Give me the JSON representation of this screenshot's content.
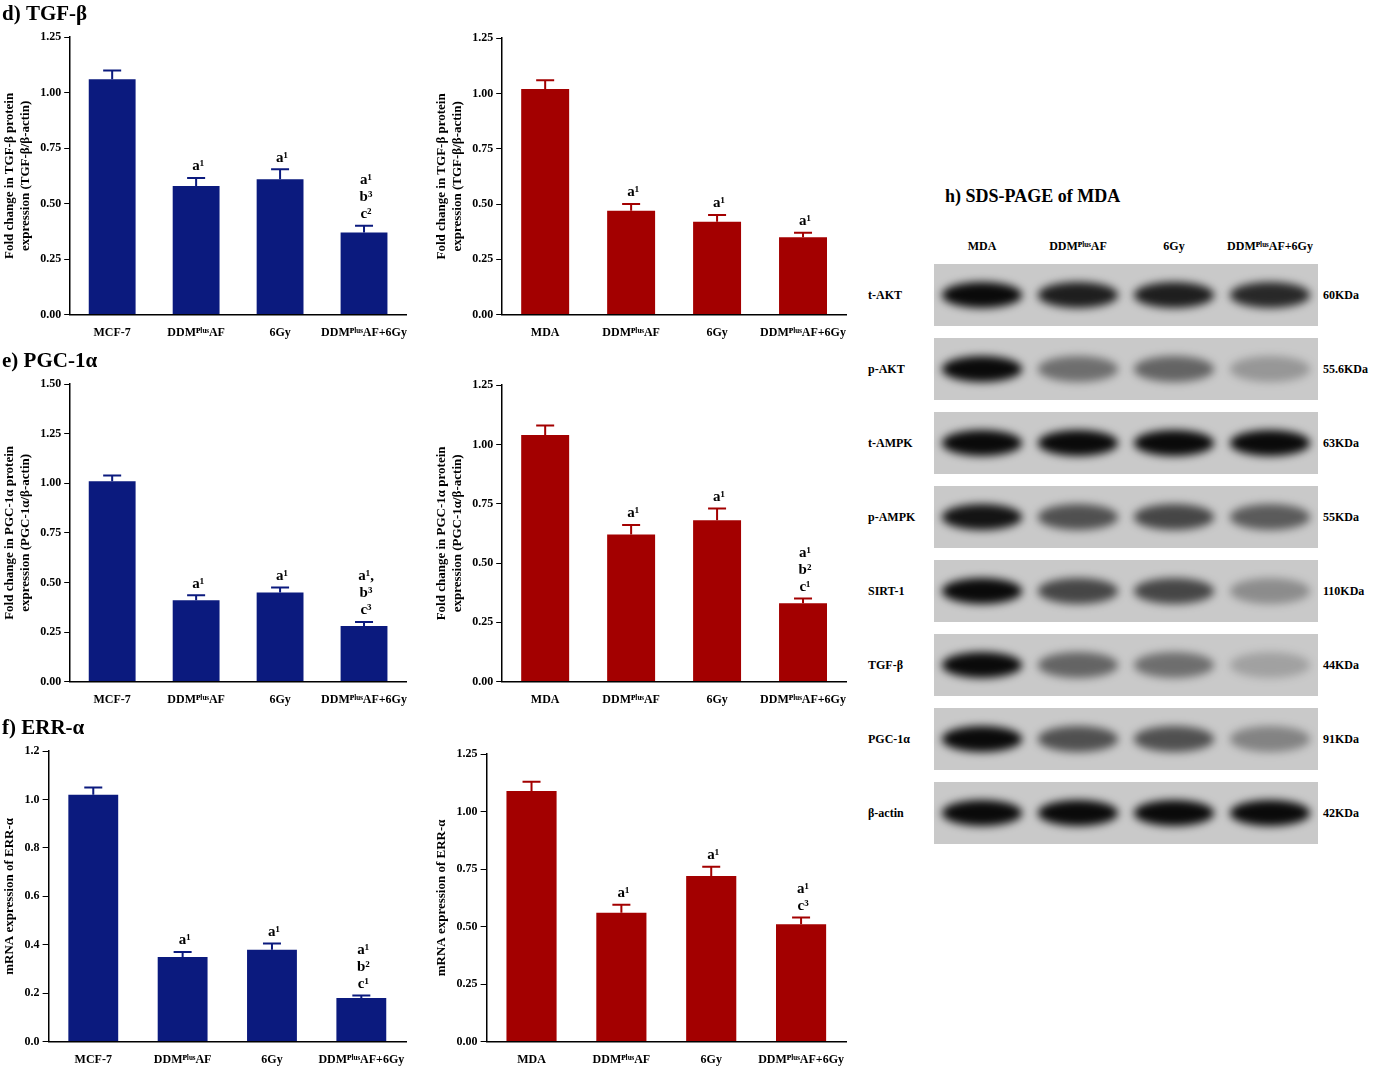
{
  "chart_data": [
    {
      "type": "bar",
      "title": "d) TGF-β",
      "y_label": [
        "Fold change in TGF-β protein",
        "expression (TGF-β/β-actin)"
      ],
      "categories": [
        "MCF-7",
        "DDMᴾˡᵘˢAF",
        "6Gy",
        "DDMᴾˡᵘˢAF+6Gy"
      ],
      "values": [
        1.06,
        0.58,
        0.61,
        0.37
      ],
      "errors": [
        0.04,
        0.035,
        0.045,
        0.03
      ],
      "annotations": [
        [],
        [
          "a¹"
        ],
        [
          "a¹"
        ],
        [
          "a¹",
          "b³",
          "c²"
        ]
      ],
      "color": "#0b1a7e",
      "ylim": [
        0,
        1.25
      ],
      "yticks": [
        {
          "value": 0,
          "label": "0.00"
        },
        0.25,
        {
          "value": 0.5,
          "label": "0.50"
        },
        0.75,
        {
          "value": 1,
          "label": "1.00"
        },
        1.25
      ],
      "grid": false
    },
    {
      "type": "bar",
      "y_label": [
        "Fold change in TGF-β protein",
        "expression (TGF-β/β-actin)"
      ],
      "categories": [
        "MDA",
        "DDMᴾˡᵘˢAF",
        "6Gy",
        "DDMᴾˡᵘˢAF+6Gy"
      ],
      "values": [
        1.02,
        0.47,
        0.42,
        0.35
      ],
      "errors": [
        0.04,
        0.03,
        0.03,
        0.02
      ],
      "annotations": [
        [],
        [
          "a¹"
        ],
        [
          "a¹"
        ],
        [
          "a¹"
        ]
      ],
      "color": "#a30000",
      "ylim": [
        0,
        1.25
      ],
      "yticks": [
        {
          "value": 0,
          "label": "0.00"
        },
        0.25,
        {
          "value": 0.5,
          "label": "0.50"
        },
        0.75,
        {
          "value": 1,
          "label": "1.00"
        },
        1.25
      ],
      "grid": false
    },
    {
      "type": "bar",
      "title": "e) PGC-1α",
      "y_label": [
        "Fold change in PGC-1α protein",
        "expression (PGC-1α/β-actin)"
      ],
      "categories": [
        "MCF-7",
        "DDMᴾˡᵘˢAF",
        "6Gy",
        "DDMᴾˡᵘˢAF+6Gy"
      ],
      "values": [
        1.01,
        0.41,
        0.45,
        0.28
      ],
      "errors": [
        0.03,
        0.025,
        0.025,
        0.02
      ],
      "annotations": [
        [],
        [
          "a¹"
        ],
        [
          "a¹"
        ],
        [
          "a¹,",
          "b³",
          "c³"
        ]
      ],
      "color": "#0b1a7e",
      "ylim": [
        0,
        1.5
      ],
      "yticks": [
        {
          "value": 0,
          "label": "0.00"
        },
        0.25,
        {
          "value": 0.5,
          "label": "0.50"
        },
        0.75,
        {
          "value": 1,
          "label": "1.00"
        },
        1.25,
        {
          "value": 1.5,
          "label": "1.50"
        }
      ],
      "grid": false
    },
    {
      "type": "bar",
      "y_label": [
        "Fold change in PGC-1α protein",
        "expression (PGC-1α/β-actin)"
      ],
      "categories": [
        "MDA",
        "DDMᴾˡᵘˢAF",
        "6Gy",
        "DDMᴾˡᵘˢAF+6Gy"
      ],
      "values": [
        1.04,
        0.62,
        0.68,
        0.33
      ],
      "errors": [
        0.04,
        0.04,
        0.05,
        0.02
      ],
      "annotations": [
        [],
        [
          "a¹"
        ],
        [
          "a¹"
        ],
        [
          "a¹",
          "b²",
          "c¹"
        ]
      ],
      "color": "#a30000",
      "ylim": [
        0,
        1.25
      ],
      "yticks": [
        {
          "value": 0,
          "label": "0.00"
        },
        0.25,
        {
          "value": 0.5,
          "label": "0.50"
        },
        0.75,
        {
          "value": 1,
          "label": "1.00"
        },
        1.25
      ],
      "grid": false
    },
    {
      "type": "bar",
      "title": "f) ERR-α",
      "y_label": [
        "mRNA expression of ERR-α"
      ],
      "categories": [
        "MCF-7",
        "DDMᴾˡᵘˢAF",
        "6Gy",
        "DDMᴾˡᵘˢAF+6Gy"
      ],
      "values": [
        1.02,
        0.35,
        0.38,
        0.18
      ],
      "errors": [
        0.03,
        0.02,
        0.025,
        0.01
      ],
      "annotations": [
        [],
        [
          "a¹"
        ],
        [
          "a¹"
        ],
        [
          "a¹",
          "b²",
          "c¹"
        ]
      ],
      "color": "#0b1a7e",
      "ylim": [
        0,
        1.2
      ],
      "yticks": [
        {
          "value": 0,
          "label": "0.0"
        },
        0.2,
        0.4,
        0.6,
        0.8,
        {
          "value": 1,
          "label": "1.0"
        },
        1.2
      ],
      "grid": false
    },
    {
      "type": "bar",
      "y_label": [
        "mRNA expression of ERR-α"
      ],
      "categories": [
        "MDA",
        "DDMᴾˡᵘˢAF",
        "6Gy",
        "DDMᴾˡᵘˢAF+6Gy"
      ],
      "values": [
        1.09,
        0.56,
        0.72,
        0.51
      ],
      "errors": [
        0.04,
        0.035,
        0.04,
        0.03
      ],
      "annotations": [
        [],
        [
          "a¹"
        ],
        [
          "a¹"
        ],
        [
          "a¹",
          "c³"
        ]
      ],
      "color": "#a30000",
      "ylim": [
        0,
        1.25
      ],
      "yticks": [
        {
          "value": 0,
          "label": "0.00"
        },
        0.25,
        {
          "value": 0.5,
          "label": "0.50"
        },
        0.75,
        {
          "value": 1,
          "label": "1.00"
        },
        1.25
      ],
      "grid": false
    }
  ],
  "blot": {
    "title": "h) SDS-PAGE of MDA",
    "columns": [
      "MDA",
      "DDMᴾˡᵘˢAF",
      "6Gy",
      "DDMᴾˡᵘˢAF+6Gy"
    ],
    "rows": [
      {
        "label": "t-AKT",
        "size": "60KDa",
        "intensity": [
          0.95,
          0.85,
          0.85,
          0.8
        ]
      },
      {
        "label": "p-AKT",
        "size": "55.6KDa",
        "intensity": [
          0.95,
          0.45,
          0.5,
          0.25
        ]
      },
      {
        "label": "t-AMPK",
        "size": "63KDa",
        "intensity": [
          0.95,
          0.95,
          0.95,
          0.95
        ]
      },
      {
        "label": "p-AMPK",
        "size": "55KDa",
        "intensity": [
          0.9,
          0.6,
          0.65,
          0.55
        ]
      },
      {
        "label": "SIRT-1",
        "size": "110KDa",
        "intensity": [
          0.95,
          0.65,
          0.65,
          0.3
        ]
      },
      {
        "label": "TGF-β",
        "size": "44KDa",
        "intensity": [
          0.95,
          0.5,
          0.45,
          0.2
        ]
      },
      {
        "label": "PGC-1α",
        "size": "91KDa",
        "intensity": [
          0.95,
          0.6,
          0.6,
          0.35
        ]
      },
      {
        "label": "β-actin",
        "size": "42KDa",
        "intensity": [
          0.95,
          0.95,
          0.95,
          0.95
        ]
      }
    ]
  }
}
